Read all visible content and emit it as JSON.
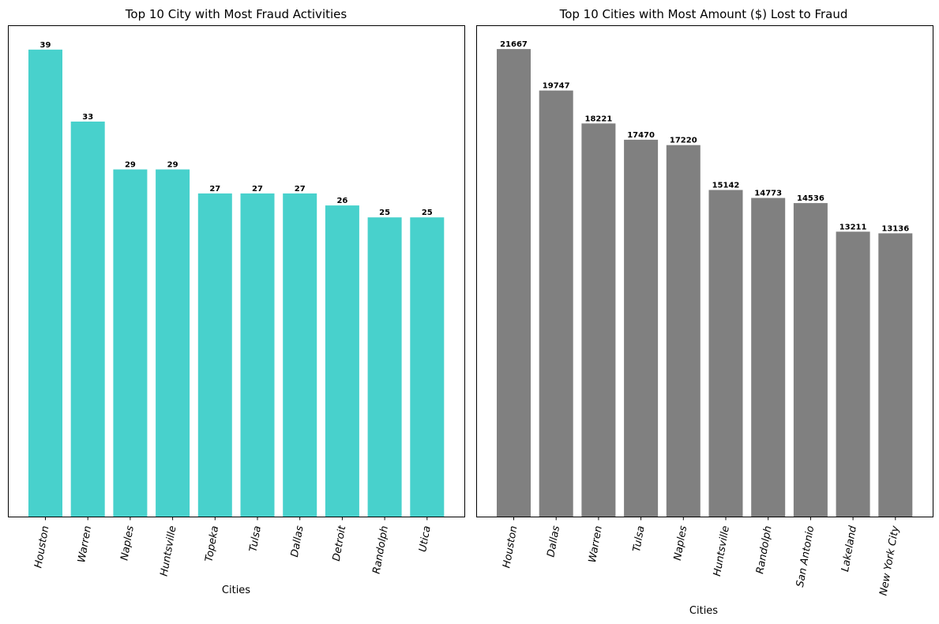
{
  "chart_data": [
    {
      "type": "bar",
      "title": "Top 10 City with Most Fraud Activities",
      "xlabel": "Cities",
      "ylabel": "",
      "categories": [
        "Houston",
        "Warren",
        "Naples",
        "Huntsville",
        "Topeka",
        "Tulsa",
        "Dallas",
        "Detroit",
        "Randolph",
        "Utica"
      ],
      "values": [
        39,
        33,
        29,
        29,
        27,
        27,
        27,
        26,
        25,
        25
      ],
      "ylim": [
        0,
        41
      ],
      "color": "#48D1CC",
      "grid": false,
      "legend": "none"
    },
    {
      "type": "bar",
      "title": "Top 10 Cities with Most Amount ($) Lost to Fraud",
      "xlabel": "Cities",
      "ylabel": "",
      "categories": [
        "Houston",
        "Dallas",
        "Warren",
        "Tulsa",
        "Naples",
        "Huntsville",
        "Randolph",
        "San Antonio",
        "Lakeland",
        "New York City"
      ],
      "values": [
        21667,
        19747,
        18221,
        17470,
        17220,
        15142,
        14773,
        14536,
        13211,
        13136
      ],
      "ylim": [
        0,
        22750
      ],
      "color": "#808080",
      "grid": false,
      "legend": "none"
    }
  ]
}
